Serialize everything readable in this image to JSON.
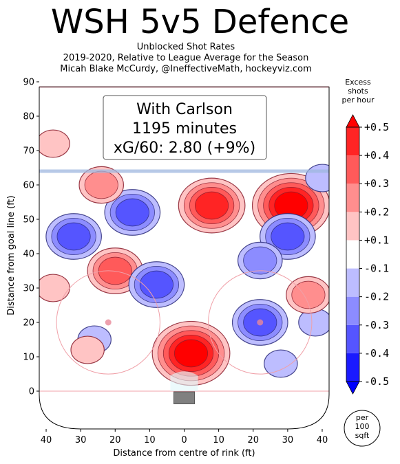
{
  "title": "WSH 5v5 Defence",
  "subtitle_lines": [
    "Unblocked Shot Rates",
    "2019-2020, Relative to League Average for the Season",
    "Micah Blake McCurdy, @IneffectiveMath, hockeyviz.com"
  ],
  "chart_data": {
    "type": "heatmap",
    "xlabel": "Distance from centre of rink (ft)",
    "ylabel": "Distance from goal line (ft)",
    "xlim": [
      -42,
      42
    ],
    "ylim": [
      -11,
      90
    ],
    "x_ticks": [
      -40,
      -30,
      -20,
      -10,
      0,
      10,
      20,
      30,
      40
    ],
    "x_tick_labels": [
      "40",
      "30",
      "20",
      "10",
      "0",
      "10",
      "20",
      "30",
      "40"
    ],
    "y_ticks": [
      0,
      10,
      20,
      30,
      40,
      50,
      60,
      70,
      80,
      90
    ],
    "annotation_lines": [
      "With Carlson",
      "1195 minutes",
      "xG/60: 2.80 (+9%)"
    ],
    "colorbar": {
      "title_lines": [
        "Excess",
        "shots",
        "per hour"
      ],
      "levels": [
        -0.5,
        -0.4,
        -0.3,
        -0.2,
        -0.1,
        0.1,
        0.2,
        0.3,
        0.4,
        0.5
      ],
      "tick_labels": [
        "-0.5",
        "-0.4",
        "-0.3",
        "-0.2",
        "-0.1",
        "+0.1",
        "+0.2",
        "+0.3",
        "+0.4",
        "+0.5"
      ],
      "colors": [
        "#1a1aff",
        "#5555ff",
        "#8c8cff",
        "#bdbdff",
        "#ffffff",
        "#ffc4c4",
        "#ff8e8e",
        "#ff5a5a",
        "#ff2424"
      ],
      "extend_low_color": "#0000ff",
      "extend_high_color": "#ff0000",
      "unit_lines": [
        "per",
        "100",
        "sqft"
      ]
    },
    "hotspots": [
      {
        "x": 2,
        "y": 11,
        "value": 0.5
      },
      {
        "x": 31,
        "y": 54,
        "value": 0.5
      },
      {
        "x": 8,
        "y": 54,
        "value": 0.4
      },
      {
        "x": -20,
        "y": 35,
        "value": 0.35
      },
      {
        "x": -32,
        "y": 45,
        "value": -0.35
      },
      {
        "x": 22,
        "y": 20,
        "value": -0.3
      },
      {
        "x": -15,
        "y": 52,
        "value": -0.3
      },
      {
        "x": 30,
        "y": 45,
        "value": -0.25
      },
      {
        "x": -8,
        "y": 31,
        "value": -0.25
      },
      {
        "x": 22,
        "y": 38,
        "value": -0.2
      },
      {
        "x": 40,
        "y": 62,
        "value": -0.15
      },
      {
        "x": -26,
        "y": 15,
        "value": -0.15
      },
      {
        "x": 28,
        "y": 8,
        "value": -0.15
      },
      {
        "x": 38,
        "y": 20,
        "value": -0.1
      },
      {
        "x": -24,
        "y": 60,
        "value": 0.2
      },
      {
        "x": -28,
        "y": 12,
        "value": 0.15
      },
      {
        "x": 36,
        "y": 28,
        "value": 0.2
      },
      {
        "x": -38,
        "y": 30,
        "value": 0.15
      },
      {
        "x": -38,
        "y": 72,
        "value": 0.1
      }
    ]
  }
}
